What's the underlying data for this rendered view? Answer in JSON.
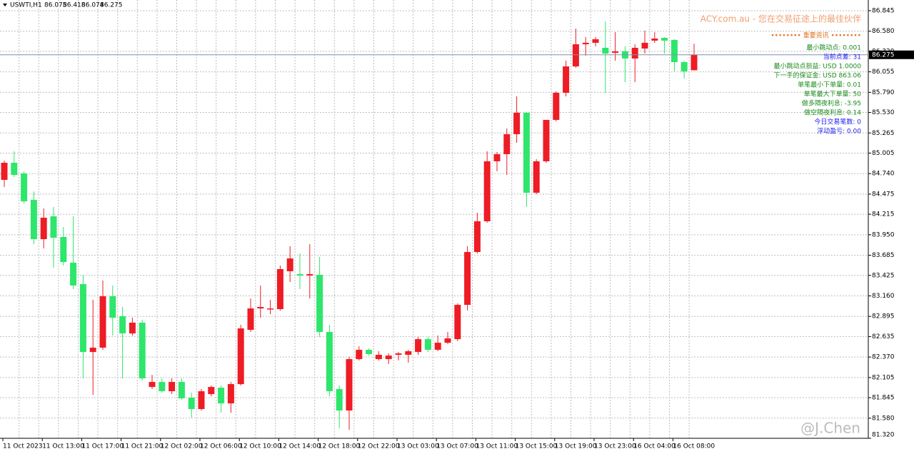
{
  "chart_data": {
    "type": "candlestick",
    "symbol": "USWTI,H1",
    "up_color": "#ee1c25",
    "down_color": "#2ee66b",
    "grid": true,
    "categories": [
      "11 Oct 2023",
      null,
      null,
      null,
      "11 Oct 13:00",
      null,
      null,
      null,
      "11 Oct 17:00",
      null,
      null,
      null,
      "11 Oct 21:00",
      null,
      null,
      null,
      "12 Oct 02:00",
      null,
      null,
      null,
      "12 Oct 06:00",
      null,
      null,
      null,
      "12 Oct 10:00",
      null,
      null,
      null,
      "12 Oct 14:00",
      null,
      null,
      null,
      "12 Oct 18:00",
      null,
      null,
      null,
      "12 Oct 22:00",
      null,
      null,
      null,
      "13 Oct 03:00",
      null,
      null,
      null,
      "13 Oct 07:00",
      null,
      null,
      null,
      "13 Oct 11:00",
      null,
      null,
      null,
      "13 Oct 15:00",
      null,
      null,
      null,
      "13 Oct 19:00",
      null,
      null,
      null,
      "13 Oct 23:00",
      null,
      null,
      null,
      "16 Oct 04:00",
      null,
      null,
      null,
      "16 Oct 08:00",
      null,
      null
    ],
    "open": [
      84.659,
      84.88,
      84.742,
      84.4,
      83.893,
      84.188,
      83.921,
      83.589,
      83.312,
      82.435,
      82.491,
      83.155,
      82.897,
      82.675,
      82.814,
      81.983,
      82.048,
      81.928,
      82.048,
      81.845,
      81.698,
      81.891,
      81.974,
      81.771,
      82.02,
      82.721,
      82.998,
      82.989,
      82.989,
      83.478,
      83.441,
      83.423,
      83.432,
      82.694,
      81.956,
      81.679,
      82.343,
      82.463,
      82.343,
      82.343,
      82.399,
      82.399,
      82.435,
      82.601,
      82.463,
      82.555,
      82.601,
      83.044,
      83.727,
      84.124,
      84.899,
      84.991,
      85.249,
      85.526,
      84.493,
      84.899,
      85.434,
      85.784,
      86.125,
      86.411,
      86.43,
      86.365,
      86.301,
      86.319,
      86.227,
      86.356,
      86.458,
      86.494,
      86.467,
      86.181,
      86.075
    ],
    "high": [
      84.908,
      85.028,
      84.769,
      84.511,
      84.29,
      84.308,
      84.05,
      84.188,
      83.432,
      83.109,
      83.358,
      83.294,
      83.017,
      82.878,
      82.851,
      82.14,
      82.094,
      82.094,
      82.094,
      81.91,
      81.956,
      82.002,
      82.002,
      82.048,
      82.786,
      83.127,
      83.294,
      83.109,
      83.552,
      83.801,
      83.708,
      83.828,
      83.662,
      82.786,
      82.002,
      82.371,
      82.509,
      82.482,
      82.445,
      82.417,
      82.435,
      82.463,
      82.629,
      82.629,
      82.648,
      82.694,
      83.063,
      83.801,
      84.234,
      85.028,
      85.018,
      85.323,
      85.738,
      85.535,
      84.926,
      85.434,
      85.803,
      86.199,
      86.614,
      86.504,
      86.504,
      86.707,
      86.568,
      86.384,
      86.411,
      86.587,
      86.568,
      86.504,
      86.476,
      86.199,
      86.418
    ],
    "low": [
      84.566,
      84.696,
      84.354,
      83.828,
      83.773,
      83.524,
      83.552,
      83.247,
      82.094,
      81.882,
      82.463,
      82.648,
      82.094,
      82.648,
      82.066,
      81.956,
      81.91,
      81.891,
      81.817,
      81.587,
      81.679,
      81.863,
      81.651,
      81.651,
      82.002,
      82.694,
      82.878,
      82.924,
      82.97,
      83.34,
      83.247,
      83.127,
      82.629,
      81.863,
      81.448,
      81.43,
      82.325,
      82.389,
      82.325,
      82.279,
      82.325,
      82.297,
      82.399,
      82.435,
      82.445,
      82.537,
      82.574,
      82.97,
      83.708,
      84.105,
      84.769,
      84.723,
      85.138,
      84.308,
      84.474,
      84.88,
      85.415,
      85.738,
      86.107,
      86.264,
      86.384,
      85.784,
      86.199,
      85.922,
      85.922,
      86.291,
      86.43,
      86.291,
      86.061,
      85.969,
      86.074
    ],
    "close": [
      84.88,
      84.723,
      84.382,
      83.893,
      84.17,
      83.911,
      83.598,
      83.294,
      82.435,
      82.491,
      83.155,
      82.878,
      82.675,
      82.814,
      82.094,
      82.048,
      81.928,
      82.048,
      81.836,
      81.698,
      81.928,
      81.983,
      81.771,
      82.02,
      82.74,
      82.998,
      83.017,
      82.998,
      83.506,
      83.644,
      83.423,
      83.441,
      82.694,
      81.928,
      81.679,
      82.343,
      82.463,
      82.408,
      82.399,
      82.389,
      82.417,
      82.445,
      82.601,
      82.463,
      82.555,
      82.611,
      83.044,
      83.727,
      84.124,
      84.899,
      84.991,
      85.249,
      85.526,
      84.493,
      84.899,
      85.434,
      85.784,
      86.125,
      86.411,
      86.43,
      86.476,
      86.291,
      86.319,
      86.227,
      86.365,
      86.43,
      86.485,
      86.458,
      86.181,
      86.061,
      86.275
    ],
    "ylim": [
      81.32,
      86.983
    ],
    "yticks": [
      86.845,
      {
        "value": 86.58,
        "label": "86.580"
      },
      {
        "value": 86.32,
        "label": "86.320"
      },
      86.055,
      {
        "value": 85.79,
        "label": "85.790"
      },
      {
        "value": 85.53,
        "label": "85.530"
      },
      85.265,
      85.005,
      {
        "value": 84.74,
        "label": "84.740"
      },
      84.475,
      84.215,
      {
        "value": 83.95,
        "label": "83.950"
      },
      83.685,
      83.425,
      {
        "value": 83.16,
        "label": "83.160"
      },
      82.895,
      82.635,
      {
        "value": 82.37,
        "label": "82.370"
      },
      82.105,
      81.845,
      {
        "value": 81.58,
        "label": "81.580"
      },
      {
        "value": 81.32,
        "label": "81.320"
      }
    ]
  },
  "info_panel": {
    "brand": "ACY.com.au - 您在交易征途上的最佳伙伴",
    "heading": "•••••••• 重要资讯 ••••••••",
    "lines": [
      {
        "text": "最小跳动点: 0.001",
        "color": "#1a8a1a"
      },
      {
        "text": "当前点差: 31",
        "color": "#1a1aee"
      },
      {
        "text": "最小跳动点损益: USD 1.0000",
        "color": "#1a8a1a"
      },
      {
        "text": "下一手的保证金: USD 863.06",
        "color": "#1a8a1a"
      },
      {
        "text": "单笔最小下单量: 0.01",
        "color": "#1a8a1a"
      },
      {
        "text": "单笔最大下单量: 50",
        "color": "#1a8a1a"
      },
      {
        "text": "做多隔夜利息: -3.95",
        "color": "#1a8a1a"
      },
      {
        "text": "做空隔夜利息: 0.14",
        "color": "#1a8a1a"
      },
      {
        "text": "今日交易笔数: 0",
        "color": "#1a1aee"
      },
      {
        "text": "浮动盈亏: 0.00",
        "color": "#1a1aee"
      }
    ]
  },
  "watermark": "@J.Chen"
}
